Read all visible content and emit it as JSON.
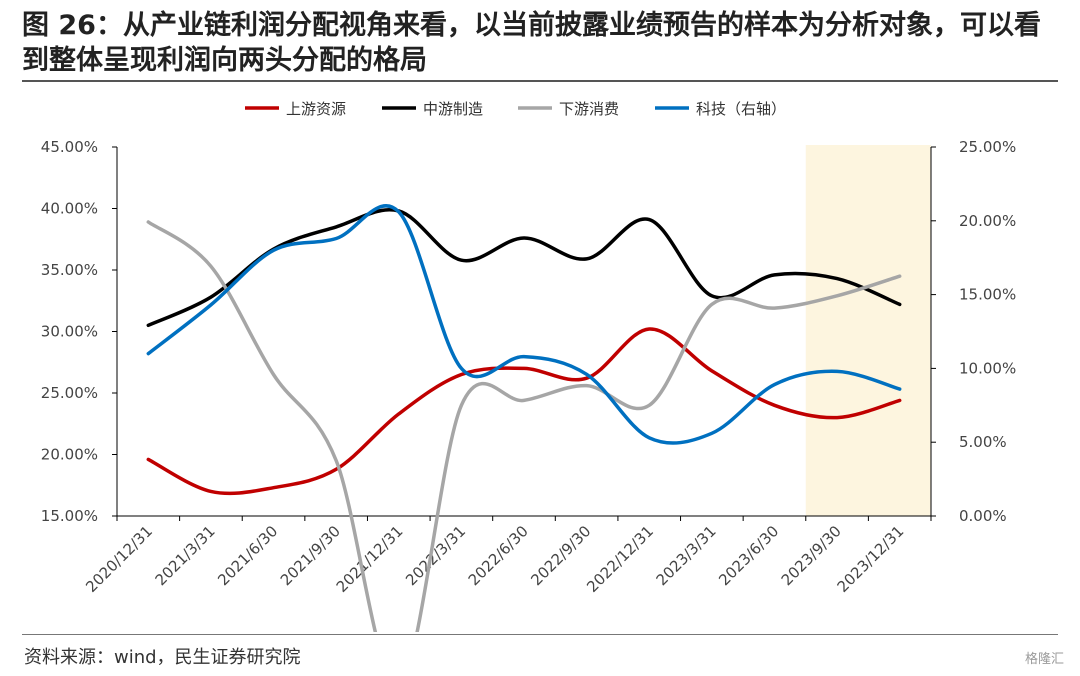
{
  "title": "图 26：从产业链利润分配视角来看，以当前披露业绩预告的样本为分析对象，可以看到整体呈现利润向两头分配的格局",
  "source": "资料来源：wind，民生证券研究院",
  "watermark": "格隆汇",
  "chart_data": {
    "type": "line",
    "categories": [
      "2020/12/31",
      "2021/3/31",
      "2021/6/30",
      "2021/9/30",
      "2021/12/31",
      "2022/3/31",
      "2022/6/30",
      "2022/9/30",
      "2022/12/31",
      "2023/3/31",
      "2023/6/30",
      "2023/9/30",
      "2023/12/31"
    ],
    "left_axis": {
      "ticks": [
        "15.00%",
        "20.00%",
        "25.00%",
        "30.00%",
        "35.00%",
        "40.00%",
        "45.00%"
      ],
      "range": [
        15,
        45
      ]
    },
    "right_axis": {
      "ticks": [
        "0.00%",
        "5.00%",
        "10.00%",
        "15.00%",
        "20.00%",
        "25.00%"
      ],
      "range": [
        0,
        25
      ]
    },
    "highlight_categories": [
      "2023/9/30",
      "2023/12/31"
    ],
    "highlight_color": "#fdf5df",
    "legend_position": "top",
    "series": [
      {
        "name": "上游资源",
        "axis": "left",
        "color": "#c00000",
        "values": [
          19.6,
          17.0,
          17.3,
          18.8,
          23.3,
          26.5,
          27.0,
          26.2,
          30.2,
          26.8,
          24.0,
          23.0,
          24.4
        ]
      },
      {
        "name": "中游制造",
        "axis": "left",
        "color": "#000000",
        "values": [
          30.5,
          32.8,
          36.7,
          38.5,
          39.8,
          35.8,
          37.6,
          35.9,
          39.1,
          32.9,
          34.6,
          34.3,
          32.2
        ]
      },
      {
        "name": "下游消费",
        "axis": "left",
        "color": "#a6a6a6",
        "values": [
          38.9,
          35.3,
          26.5,
          19.5,
          1.2,
          24.0,
          24.4,
          25.6,
          24.0,
          32.2,
          31.9,
          32.9,
          34.5
        ]
      },
      {
        "name": "科技（右轴）",
        "axis": "right",
        "color": "#0070c0",
        "values": [
          11.0,
          14.3,
          18.0,
          18.8,
          20.6,
          10.0,
          10.8,
          9.6,
          5.3,
          5.6,
          8.9,
          9.8,
          8.6
        ]
      }
    ]
  }
}
